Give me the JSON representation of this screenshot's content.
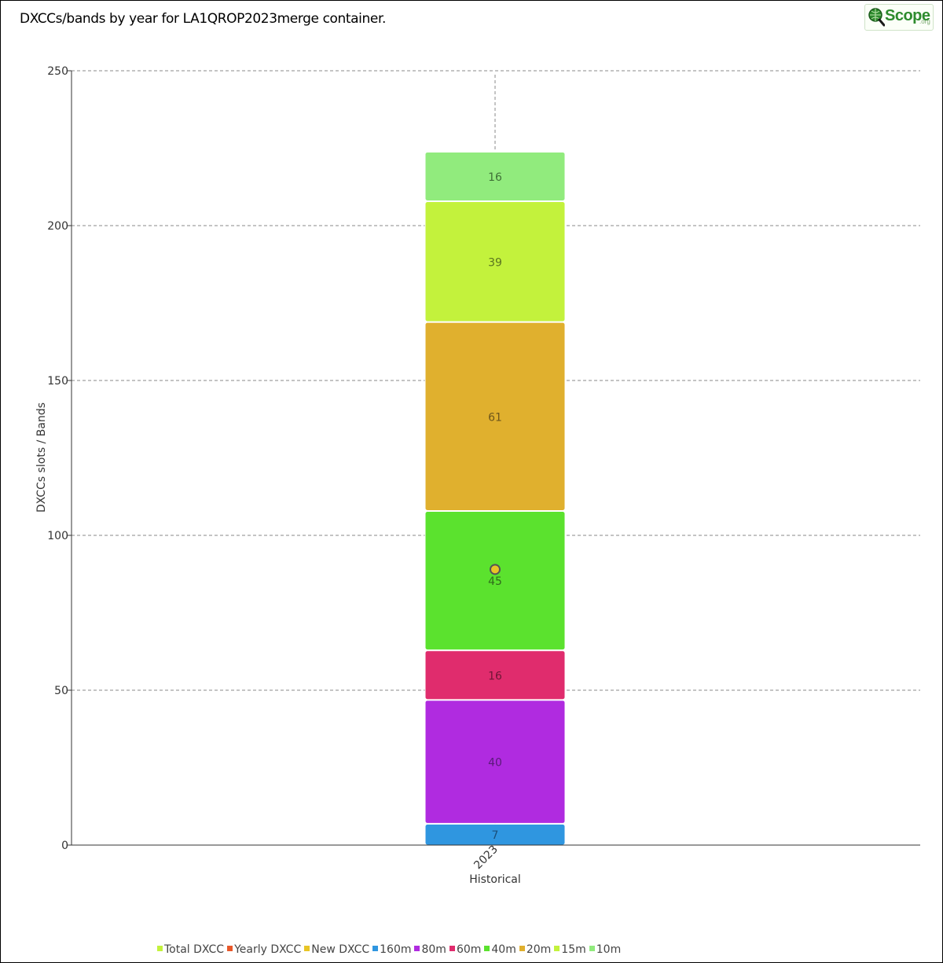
{
  "title": "DXCCs/bands by year for LA1QROP2023merge container.",
  "logo": {
    "text": "Scope",
    "suffix": ".org",
    "icon": "globe-magnifier-icon"
  },
  "chart_data": {
    "type": "bar",
    "stacked": true,
    "categories": [
      "2023"
    ],
    "xlabel": "Historical",
    "ylabel": "DXCCs slots / Bands",
    "ylim": [
      0,
      250
    ],
    "yticks": [
      0,
      50,
      100,
      150,
      200,
      250
    ],
    "grid": true,
    "legend_position": "bottom",
    "series": [
      {
        "name": "160m",
        "values": [
          7
        ],
        "color": "#2f96e0",
        "label_color": "#1b4f7a"
      },
      {
        "name": "80m",
        "values": [
          40
        ],
        "color": "#b02be0",
        "label_color": "#5a1a7a"
      },
      {
        "name": "60m",
        "values": [
          16
        ],
        "color": "#e02c6d",
        "label_color": "#6e1636"
      },
      {
        "name": "40m",
        "values": [
          45
        ],
        "color": "#5be22e",
        "label_color": "#2f6b1b"
      },
      {
        "name": "20m",
        "values": [
          61
        ],
        "color": "#e0b02e",
        "label_color": "#6e561b"
      },
      {
        "name": "15m",
        "values": [
          39
        ],
        "color": "#c3f23c",
        "label_color": "#5b7420"
      },
      {
        "name": "10m",
        "values": [
          16
        ],
        "color": "#91eb7d",
        "label_color": "#3f7037"
      }
    ],
    "points": [
      {
        "name": "New DXCC",
        "values": [
          89
        ],
        "color": "#e8c526"
      }
    ],
    "legend": [
      {
        "name": "Total DXCC",
        "color": "#c3f23c"
      },
      {
        "name": "Yearly DXCC",
        "color": "#e8582a"
      },
      {
        "name": "New DXCC",
        "color": "#e8c526"
      },
      {
        "name": "160m",
        "color": "#2f96e0"
      },
      {
        "name": "80m",
        "color": "#b02be0"
      },
      {
        "name": "60m",
        "color": "#e02c6d"
      },
      {
        "name": "40m",
        "color": "#5be22e"
      },
      {
        "name": "20m",
        "color": "#e0b02e"
      },
      {
        "name": "15m",
        "color": "#c3f23c"
      },
      {
        "name": "10m",
        "color": "#91eb7d"
      }
    ]
  }
}
